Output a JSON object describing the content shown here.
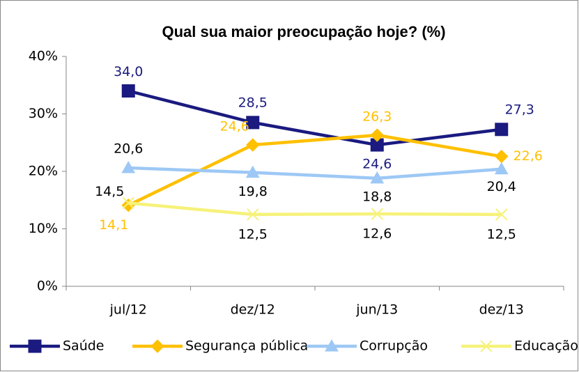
{
  "chart_data": {
    "type": "line",
    "title": "Qual sua maior preocupação hoje? (%)",
    "categories": [
      "jul/12",
      "dez/12",
      "jun/13",
      "dez/13"
    ],
    "series": [
      {
        "name": "Saúde",
        "color": "#1a1a80",
        "marker": "square",
        "values": [
          34.0,
          28.5,
          24.6,
          27.3
        ],
        "value_labels": [
          "34,0",
          "28,5",
          "24,6",
          "27,3"
        ]
      },
      {
        "name": "Segurança pública",
        "color": "#ffc000",
        "marker": "diamond",
        "values": [
          14.1,
          24.6,
          26.3,
          22.6
        ],
        "value_labels": [
          "14,1",
          "24,6",
          "26,3",
          "22,6"
        ]
      },
      {
        "name": "Corrupção",
        "color": "#9dc8f5",
        "marker": "triangle",
        "values": [
          20.6,
          19.8,
          18.8,
          20.4
        ],
        "value_labels": [
          "20,6",
          "19,8",
          "18,8",
          "20,4"
        ]
      },
      {
        "name": "Educação",
        "color": "#f6f27a",
        "marker": "x",
        "values": [
          14.5,
          12.5,
          12.6,
          12.5
        ],
        "value_labels": [
          "14,5",
          "12,5",
          "12,6",
          "12,5"
        ]
      }
    ],
    "ylim": [
      0,
      40
    ],
    "yticks": [
      {
        "value": 0,
        "label": "0%"
      },
      {
        "value": 10,
        "label": "10%"
      },
      {
        "value": 20,
        "label": "20%"
      },
      {
        "value": 30,
        "label": "30%"
      },
      {
        "value": 40,
        "label": "40%"
      }
    ],
    "legend": "bottom"
  }
}
